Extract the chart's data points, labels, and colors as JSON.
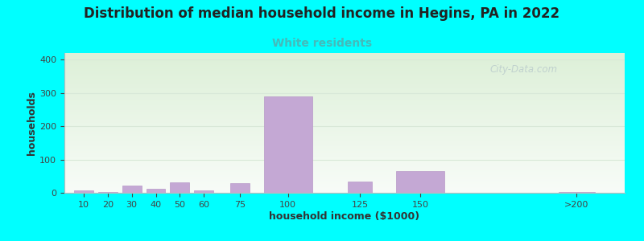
{
  "title": "Distribution of median household income in Hegins, PA in 2022",
  "subtitle": "White residents",
  "xlabel": "household income ($1000)",
  "ylabel": "households",
  "background_color": "#00FFFF",
  "plot_bg_gradient_top": "#ddf0d8",
  "plot_bg_gradient_bottom": "#f8fcf8",
  "bar_color": "#c4a8d4",
  "bar_edge_color": "#b898c8",
  "bar_positions": [
    10,
    20,
    30,
    40,
    50,
    60,
    75,
    95,
    125,
    150,
    215
  ],
  "bar_widths": [
    8,
    8,
    8,
    8,
    8,
    8,
    8,
    20,
    10,
    20,
    15
  ],
  "bar_heights": [
    8,
    2,
    22,
    12,
    32,
    8,
    30,
    290,
    35,
    65,
    3
  ],
  "xlim": [
    2,
    235
  ],
  "ylim": [
    0,
    420
  ],
  "yticks": [
    0,
    100,
    200,
    300,
    400
  ],
  "xtick_labels": [
    "10",
    "20",
    "30",
    "40",
    "50",
    "60",
    "75",
    "100",
    "125",
    "150",
    ">200"
  ],
  "xtick_positions": [
    10,
    20,
    30,
    40,
    50,
    60,
    75,
    95,
    125,
    150,
    215
  ],
  "title_fontsize": 12,
  "subtitle_fontsize": 10,
  "subtitle_color": "#44bbbb",
  "axis_label_fontsize": 9,
  "tick_fontsize": 8,
  "watermark_text": "City-Data.com",
  "watermark_color": "#bbcccc",
  "grid_color": "#d8e8d8",
  "ylabel_rotation": 90
}
